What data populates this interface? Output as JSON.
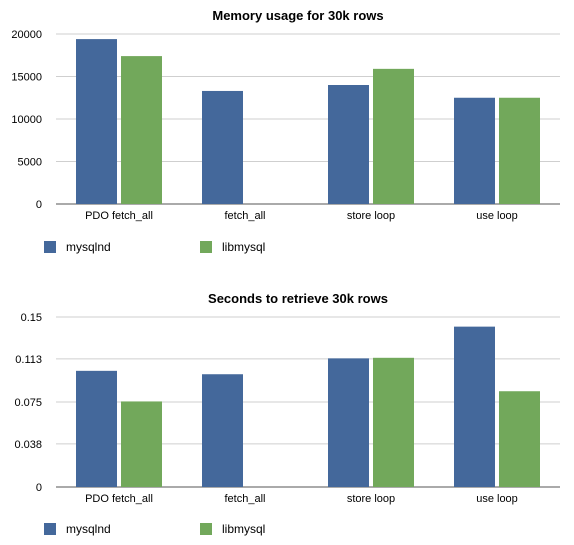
{
  "colors": {
    "mysqlnd": "#44689b",
    "libmysql": "#72a85b",
    "grid": "#cfcfcf",
    "axis": "#555555"
  },
  "chart_data": [
    {
      "type": "bar",
      "title": "Memory usage for 30k rows",
      "categories": [
        "PDO fetch_all",
        "fetch_all",
        "store loop",
        "use loop"
      ],
      "series": [
        {
          "name": "mysqlnd",
          "values": [
            19400,
            13300,
            14000,
            12500
          ]
        },
        {
          "name": "libmysql",
          "values": [
            17400,
            null,
            15900,
            12500
          ]
        }
      ],
      "yticks": [
        "0",
        "5000",
        "10000",
        "15000",
        "20000"
      ],
      "ylim": [
        0,
        20000
      ],
      "grid": true,
      "legend": "bottom-left"
    },
    {
      "type": "bar",
      "title": "Seconds to retrieve 30k rows",
      "categories": [
        "PDO fetch_all",
        "fetch_all",
        "store loop",
        "use loop"
      ],
      "series": [
        {
          "name": "mysqlnd",
          "values": [
            0.1025,
            0.0995,
            0.1135,
            0.1415
          ]
        },
        {
          "name": "libmysql",
          "values": [
            0.0755,
            null,
            0.114,
            0.0845
          ]
        }
      ],
      "yticks": [
        "0",
        "0.038",
        "0.075",
        "0.113",
        "0.15"
      ],
      "ylim": [
        0,
        0.15
      ],
      "grid": true,
      "legend": "bottom-left"
    }
  ]
}
